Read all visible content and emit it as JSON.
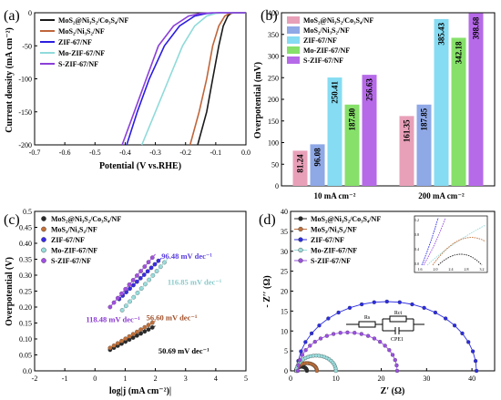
{
  "figure": {
    "panels": [
      {
        "id": "a",
        "letter": "(a)",
        "chart_data": {
          "type": "line",
          "xlabel": "Potential (V vs.RHE)",
          "ylabel": "Current density (mA cm⁻²)",
          "xlim": [
            -0.7,
            0.0
          ],
          "ylim": [
            -200,
            0
          ],
          "xticks": [
            "-0.7",
            "-0.6",
            "-0.5",
            "-0.4",
            "-0.3",
            "-0.2",
            "-0.1",
            "0.0"
          ],
          "yticks": [
            "0",
            "-50",
            "-100",
            "-150",
            "-200"
          ],
          "legend_position": "top-left",
          "series": [
            {
              "name": "MoS₂@Ni₃S₂/Co₃S₄/NF",
              "color": "#1a1a1a",
              "x": [
                -0.16,
                -0.13,
                -0.11,
                -0.09,
                -0.075,
                -0.06,
                -0.05,
                -0.04
              ],
              "y": [
                -200,
                -150,
                -100,
                -50,
                -20,
                -5,
                -1,
                0
              ]
            },
            {
              "name": "MoS₂/Ni₃S₂/NF",
              "color": "#c0653a",
              "x": [
                -0.185,
                -0.155,
                -0.13,
                -0.11,
                -0.09,
                -0.07,
                -0.055,
                -0.04
              ],
              "y": [
                -200,
                -150,
                -100,
                -50,
                -20,
                -5,
                -1,
                0
              ]
            },
            {
              "name": "ZIF-67/NF",
              "color": "#2c1de0",
              "x": [
                -0.395,
                -0.36,
                -0.32,
                -0.27,
                -0.22,
                -0.17,
                -0.13,
                -0.09
              ],
              "y": [
                -200,
                -150,
                -100,
                -50,
                -20,
                -5,
                -1,
                0
              ]
            },
            {
              "name": "Mo-ZIF-67/NF",
              "color": "#8fdada",
              "x": [
                -0.345,
                -0.3,
                -0.255,
                -0.21,
                -0.17,
                -0.13,
                -0.1,
                -0.07
              ],
              "y": [
                -200,
                -150,
                -100,
                -50,
                -20,
                -5,
                -1,
                0
              ]
            },
            {
              "name": "S-ZIF-67/NF",
              "color": "#8a3fd8",
              "x": [
                -0.41,
                -0.37,
                -0.33,
                -0.29,
                -0.24,
                -0.19,
                -0.15,
                -0.11
              ],
              "y": [
                -200,
                -150,
                -100,
                -50,
                -20,
                -5,
                -1,
                0
              ]
            }
          ]
        }
      },
      {
        "id": "b",
        "letter": "(b)",
        "chart_data": {
          "type": "bar",
          "ylabel": "Overpotential (mV)",
          "ylim": [
            0,
            400
          ],
          "yticks": [
            "0",
            "50",
            "100",
            "150",
            "200",
            "250",
            "300",
            "350",
            "400"
          ],
          "categories": [
            "10 mA cm⁻²",
            "200 mA cm⁻²"
          ],
          "legend_position": "top-left",
          "series": [
            {
              "name": "MoS₂@Ni₃S₂/Co₃S₄/NF",
              "color": "#e8a0b8",
              "values": [
                81.24,
                161.35
              ],
              "labels": [
                "81.24",
                "161.35"
              ]
            },
            {
              "name": "MoS₂/Ni₃S₂/NF",
              "color": "#8fa8e6",
              "values": [
                96.08,
                187.85
              ],
              "labels": [
                "96.08",
                "187.85"
              ]
            },
            {
              "name": "ZIF-67/NF",
              "color": "#86dcf2",
              "values": [
                250.41,
                385.43
              ],
              "labels": [
                "250.41",
                "385.43"
              ]
            },
            {
              "name": "Mo-ZIF-67/NF",
              "color": "#86e06a",
              "values": [
                187.8,
                342.18
              ],
              "labels": [
                "187.80",
                "342.18"
              ]
            },
            {
              "name": "S-ZIF-67/NF",
              "color": "#b66ae8",
              "values": [
                256.63,
                398.68
              ],
              "labels": [
                "256.63",
                "398.68"
              ]
            }
          ]
        }
      },
      {
        "id": "c",
        "letter": "(c)",
        "chart_data": {
          "type": "scatter",
          "xlabel": "log|j (mA cm⁻²)|",
          "ylabel": "Overpotential (V)",
          "xlim": [
            -2,
            5
          ],
          "ylim": [
            0,
            0.5
          ],
          "xticks": [
            "-2",
            "-1",
            "0",
            "1",
            "2",
            "3",
            "4",
            "5"
          ],
          "yticks": [
            "0.0",
            "0.05",
            "0.10",
            "0.15",
            "0.20",
            "0.25",
            "0.30",
            "0.35",
            "0.40",
            "0.45",
            "0.5"
          ],
          "legend_position": "top-left",
          "series": [
            {
              "name": "MoS₂@Ni₃S₂/Co₃S₄/NF",
              "color": "#2a2a2a",
              "x0": 0.5,
              "x1": 1.9,
              "y0": 0.066,
              "y1": 0.136,
              "slope_label": "50.69  mV dec⁻¹"
            },
            {
              "name": "MoS₂/Ni₃S₂/NF",
              "color": "#c0703a",
              "x0": 0.5,
              "x1": 1.9,
              "y0": 0.072,
              "y1": 0.151,
              "slope_label": "56.60  mV dec⁻¹"
            },
            {
              "name": "ZIF-67/NF",
              "color": "#3a2de0",
              "x0": 0.8,
              "x1": 2.1,
              "y0": 0.225,
              "y1": 0.345,
              "slope_label": "96.48 mV dec⁻¹"
            },
            {
              "name": "Mo-ZIF-67/NF",
              "color": "#9adcdc",
              "x0": 0.9,
              "x1": 2.3,
              "y0": 0.19,
              "y1": 0.34,
              "slope_label": "116.85 mV dec⁻¹"
            },
            {
              "name": "S-ZIF-67/NF",
              "color": "#a050e0",
              "x0": 0.5,
              "x1": 1.9,
              "y0": 0.2,
              "y1": 0.355,
              "slope_label": "118.48 mV dec⁻¹"
            }
          ]
        }
      },
      {
        "id": "d",
        "letter": "(d)",
        "chart_data": {
          "type": "scatter",
          "xlabel": "Z′ (Ω)",
          "ylabel": "- Z′′ (Ω)",
          "xlim": [
            0,
            45
          ],
          "ylim": [
            0,
            40
          ],
          "xticks": [
            "0",
            "10",
            "20",
            "30",
            "40"
          ],
          "yticks": [
            "0",
            "5",
            "10",
            "15",
            "20",
            "25",
            "30",
            "35",
            "40"
          ],
          "legend_position": "top-left",
          "series": [
            {
              "name": "MoS₂@Ni₃S₂/Co₃S₄/NF",
              "color": "#2a2a2a",
              "r0": 1.2,
              "r1": 3.6
            },
            {
              "name": "MoS₂/Ni₃S₂/NF",
              "color": "#c0703a",
              "r0": 1.4,
              "r1": 5.8
            },
            {
              "name": "ZIF-67/NF",
              "color": "#2c2de0",
              "r0": 1.5,
              "r1": 41.0
            },
            {
              "name": "Mo-ZIF-67/NF",
              "color": "#9adcdc",
              "r0": 1.3,
              "r1": 10.0
            },
            {
              "name": "S-ZIF-67/NF",
              "color": "#9a50e0",
              "r0": 1.6,
              "r1": 23.5
            }
          ],
          "inset": {
            "xlabel": "Z′ (Ω)",
            "ylabel": "Z′′ (Ω)",
            "xticks": [
              "1.6",
              "2.0",
              "2.4",
              "2.8",
              "3.2"
            ],
            "yticks": [
              "0.0",
              "0.4",
              "0.8",
              "1.2"
            ]
          },
          "circuit_labels": [
            "Rs",
            "Rct",
            "CPE1"
          ]
        }
      }
    ]
  }
}
